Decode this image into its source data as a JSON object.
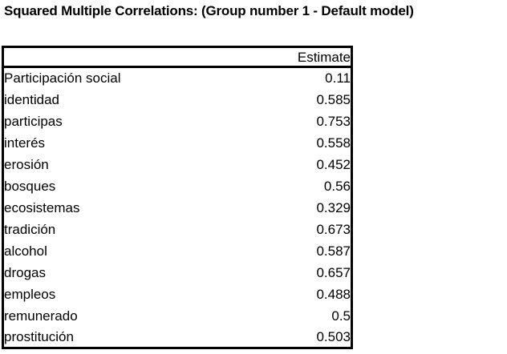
{
  "title": "Squared Multiple Correlations: (Group number 1 - Default model)",
  "table": {
    "header_estimate": "Estimate",
    "rows": [
      {
        "label": "Participación social",
        "estimate": "0.11"
      },
      {
        "label": "identidad",
        "estimate": "0.585"
      },
      {
        "label": "participas",
        "estimate": "0.753"
      },
      {
        "label": "interés",
        "estimate": "0.558"
      },
      {
        "label": "erosión",
        "estimate": "0.452"
      },
      {
        "label": "bosques",
        "estimate": "0.56"
      },
      {
        "label": "ecosistemas",
        "estimate": "0.329"
      },
      {
        "label": "tradición",
        "estimate": "0.673"
      },
      {
        "label": "alcohol",
        "estimate": "0.587"
      },
      {
        "label": "drogas",
        "estimate": "0.657"
      },
      {
        "label": "empleos",
        "estimate": "0.488"
      },
      {
        "label": "remunerado",
        "estimate": "0.5"
      },
      {
        "label": "prostitución",
        "estimate": "0.503"
      }
    ]
  }
}
